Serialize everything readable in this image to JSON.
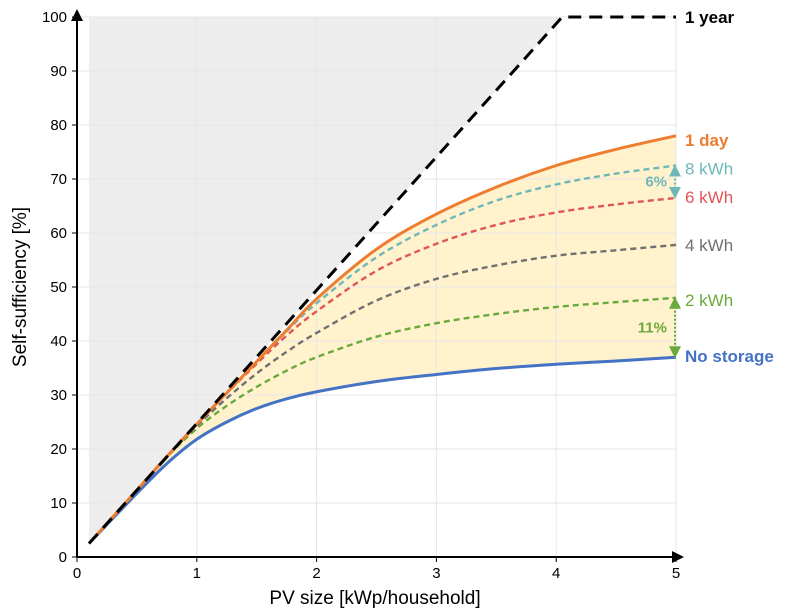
{
  "chart_data": {
    "type": "line",
    "title": "",
    "xlabel": "PV size [kWp/household]",
    "ylabel": "Self-sufficiency [%]",
    "xlim": [
      0,
      5
    ],
    "ylim": [
      0,
      100
    ],
    "x_ticks": [
      "0",
      "1",
      "2",
      "3",
      "4",
      "5"
    ],
    "y_ticks": [
      "0",
      "10",
      "20",
      "30",
      "40",
      "50",
      "60",
      "70",
      "80",
      "90",
      "100"
    ],
    "grid": true,
    "legend": "inline labels at right end of each curve",
    "x": [
      0.1,
      0.25,
      0.5,
      0.75,
      1.0,
      1.25,
      1.5,
      1.75,
      2.0,
      2.5,
      3.0,
      3.5,
      4.0,
      4.5,
      5.0
    ],
    "series": [
      {
        "name": "1 year",
        "style": "dashed",
        "color": "#000000",
        "bold_label": true,
        "points": [
          [
            0.1,
            2.5
          ],
          [
            4.05,
            100
          ],
          [
            5.0,
            100
          ]
        ]
      },
      {
        "name": "1 day",
        "style": "solid",
        "color": "#ED7D31",
        "bold_label": true,
        "values": [
          2.5,
          6.2,
          12.4,
          18.6,
          24.6,
          30.4,
          36.2,
          42.0,
          47.8,
          57.0,
          63.5,
          68.5,
          72.5,
          75.5,
          78.0
        ]
      },
      {
        "name": "8 kWh",
        "style": "dashed",
        "color": "#70B8B8",
        "bold_label": false,
        "values": [
          2.5,
          6.2,
          12.4,
          18.6,
          24.6,
          30.4,
          36.2,
          41.8,
          47.0,
          55.5,
          61.5,
          66.0,
          69.0,
          71.0,
          72.5
        ]
      },
      {
        "name": "6 kWh",
        "style": "dashed",
        "color": "#E05555",
        "bold_label": false,
        "values": [
          2.5,
          6.2,
          12.4,
          18.6,
          24.6,
          30.3,
          35.8,
          41.0,
          45.5,
          53.0,
          58.0,
          61.5,
          63.8,
          65.3,
          66.5
        ]
      },
      {
        "name": "4 kWh",
        "style": "dashed",
        "color": "#707070",
        "bold_label": false,
        "values": [
          2.5,
          6.2,
          12.4,
          18.6,
          24.3,
          29.4,
          34.0,
          38.0,
          41.5,
          47.5,
          51.5,
          54.0,
          55.8,
          56.8,
          57.8
        ]
      },
      {
        "name": "2 kWh",
        "style": "dashed",
        "color": "#6AAA3C",
        "bold_label": false,
        "values": [
          2.5,
          6.2,
          12.4,
          18.5,
          23.8,
          28.0,
          31.5,
          34.5,
          37.0,
          40.8,
          43.3,
          45.0,
          46.3,
          47.2,
          48.0
        ]
      },
      {
        "name": "No storage",
        "style": "solid",
        "color": "#4472C4",
        "bold_label": true,
        "values": [
          2.5,
          6.0,
          11.8,
          17.3,
          21.8,
          25.0,
          27.5,
          29.3,
          30.6,
          32.5,
          33.8,
          34.9,
          35.7,
          36.3,
          37.0
        ]
      }
    ],
    "annotations": [
      {
        "text": "6%",
        "color": "#70B8B8",
        "between": [
          "8 kWh",
          "6 kWh"
        ],
        "x": 5.0,
        "y_from": 72.5,
        "y_to": 66.5
      },
      {
        "text": "11%",
        "color": "#6AAA3C",
        "between": [
          "2 kWh",
          "No storage"
        ],
        "x": 5.0,
        "y_from": 48.0,
        "y_to": 37.0
      }
    ],
    "colors": {
      "upper_region": "#EDEDED",
      "storage_band": "#FFF2CC",
      "grid": "#E6E6E6"
    }
  }
}
